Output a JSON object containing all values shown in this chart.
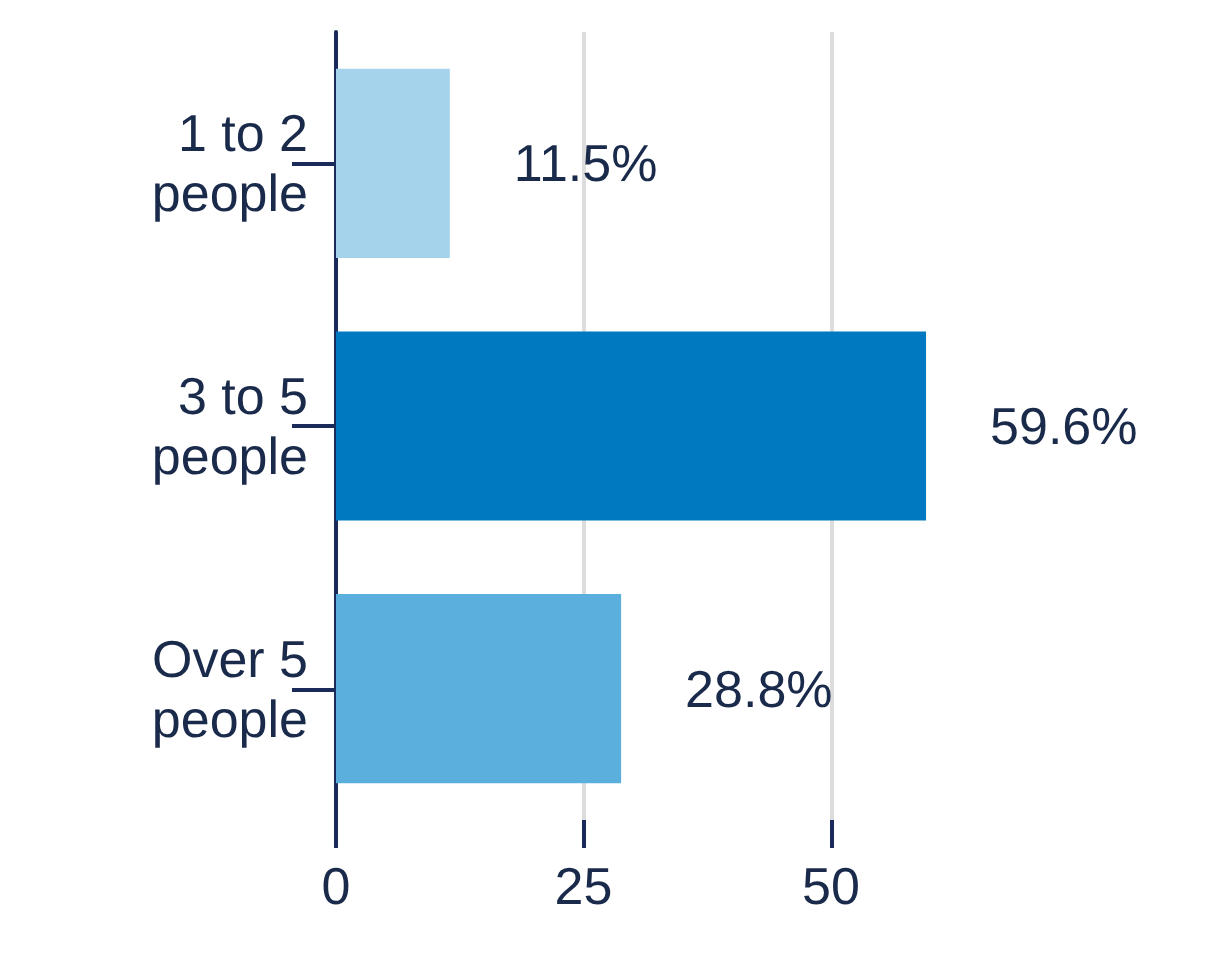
{
  "chart_data": {
    "type": "bar",
    "orientation": "horizontal",
    "categories": [
      "1 to 2\npeople",
      "3 to 5\npeople",
      "Over 5\npeople"
    ],
    "values": [
      11.5,
      59.6,
      28.8
    ],
    "colors": [
      "#a6d3ec",
      "#0079c1",
      "#5aafdc"
    ],
    "value_labels": [
      "11.5%",
      "59.6%",
      "28.8%"
    ],
    "xlim": [
      0,
      60
    ],
    "xticks": [
      0,
      25,
      50
    ],
    "grid": "x"
  }
}
